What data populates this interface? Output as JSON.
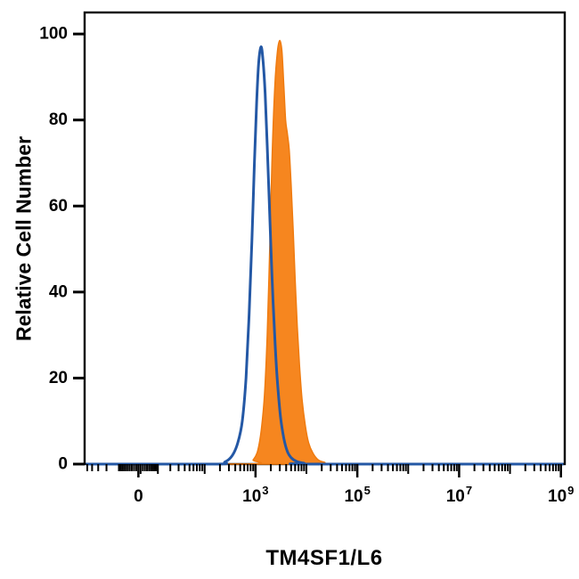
{
  "chart_data": {
    "type": "area",
    "chart_kind": "flow-cytometry-histogram",
    "title": "",
    "xlabel": "TM4SF1/L6",
    "ylabel": "Relative Cell Number",
    "grid": false,
    "legend": "none",
    "plot_background": "#ffffff",
    "border_color": "#000000",
    "ylim": [
      0,
      105
    ],
    "y_ticks": [
      0,
      20,
      40,
      60,
      80,
      100
    ],
    "x_scale": {
      "type": "asinh",
      "cofactor": 10,
      "min": 0,
      "max": 1000000000
    },
    "x_ticks": [
      {
        "value": 0,
        "label": "0"
      },
      {
        "value": 1000,
        "base": "10",
        "exp": "3"
      },
      {
        "value": 100000,
        "base": "10",
        "exp": "5"
      },
      {
        "value": 10000000,
        "base": "10",
        "exp": "7"
      },
      {
        "value": 1000000000,
        "base": "10",
        "exp": "9"
      }
    ],
    "series": [
      {
        "name": "filled-stained-population",
        "color": "#F6861F",
        "stroke": "#EF7B10",
        "fill": true,
        "points": [
          [
            700,
            0
          ],
          [
            900,
            1
          ],
          [
            1100,
            3
          ],
          [
            1300,
            8
          ],
          [
            1500,
            16
          ],
          [
            1700,
            30
          ],
          [
            1900,
            50
          ],
          [
            2100,
            70
          ],
          [
            2400,
            88
          ],
          [
            2700,
            96
          ],
          [
            3000,
            98.5
          ],
          [
            3300,
            96
          ],
          [
            3600,
            88
          ],
          [
            3900,
            80
          ],
          [
            4200,
            77
          ],
          [
            4600,
            73
          ],
          [
            5000,
            65
          ],
          [
            5500,
            54
          ],
          [
            6000,
            43
          ],
          [
            6600,
            32
          ],
          [
            7300,
            23
          ],
          [
            8200,
            15
          ],
          [
            9500,
            9
          ],
          [
            11000,
            5
          ],
          [
            13500,
            2.5
          ],
          [
            17000,
            1
          ],
          [
            23000,
            0.4
          ],
          [
            32000,
            0
          ]
        ]
      },
      {
        "name": "open-control-population",
        "color": "#2458A5",
        "stroke": "#2458A5",
        "fill": false,
        "points": [
          [
            150,
            0
          ],
          [
            250,
            0.5
          ],
          [
            350,
            2
          ],
          [
            450,
            5
          ],
          [
            550,
            10
          ],
          [
            650,
            20
          ],
          [
            750,
            35
          ],
          [
            850,
            52
          ],
          [
            950,
            70
          ],
          [
            1050,
            84
          ],
          [
            1150,
            93
          ],
          [
            1280,
            97
          ],
          [
            1400,
            94
          ],
          [
            1550,
            86
          ],
          [
            1700,
            74
          ],
          [
            1900,
            58
          ],
          [
            2100,
            44
          ],
          [
            2400,
            29
          ],
          [
            2700,
            19
          ],
          [
            3100,
            11
          ],
          [
            3600,
            6
          ],
          [
            4200,
            3
          ],
          [
            5000,
            1.5
          ],
          [
            6500,
            0.6
          ],
          [
            9000,
            0.2
          ],
          [
            12000,
            0
          ]
        ]
      }
    ]
  }
}
